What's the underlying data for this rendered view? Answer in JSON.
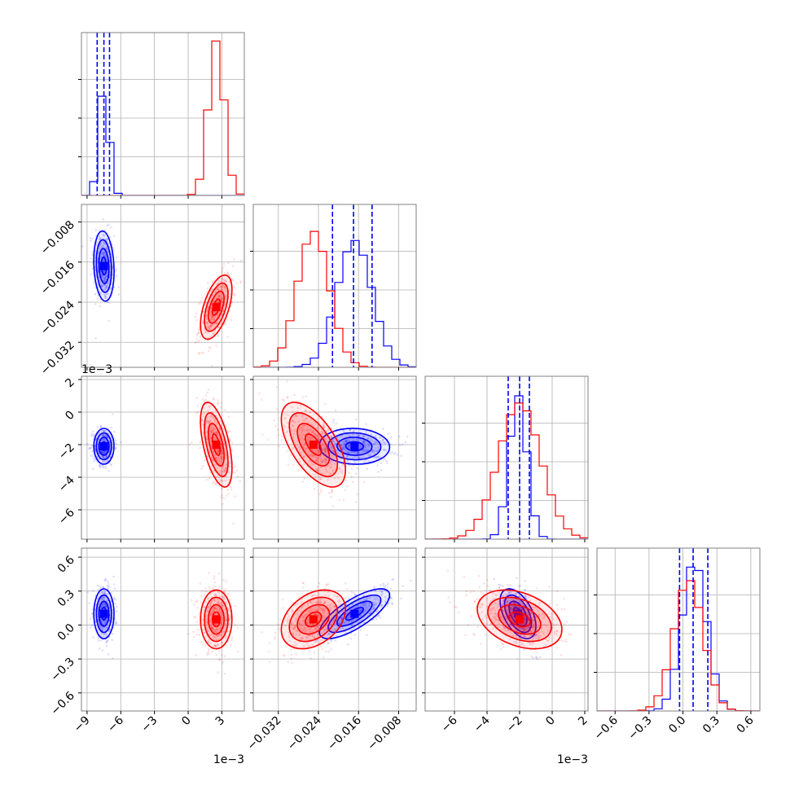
{
  "chart_data": {
    "type": "corner",
    "grid": true,
    "colors": {
      "blue": "#0000ff",
      "red": "#ff0000",
      "frame": "#808080",
      "grid": "#b0b0b0"
    },
    "parameters": [
      {
        "range": [
          -0.0095,
          0.005
        ],
        "ticks": [
          -0.009,
          -0.006,
          -0.003,
          0.0,
          0.003
        ],
        "tick_labels": [
          "−9",
          "−6",
          "−3",
          "0",
          "3"
        ],
        "offset_label": "1e−3"
      },
      {
        "range": [
          -0.037,
          -0.0045
        ],
        "ticks": [
          -0.032,
          -0.024,
          -0.016,
          -0.008
        ],
        "tick_labels": [
          "−0.032",
          "−0.024",
          "−0.016",
          "−0.008"
        ],
        "offset_label": ""
      },
      {
        "range": [
          -0.0078,
          0.0022
        ],
        "ticks": [
          -0.006,
          -0.004,
          -0.002,
          0.0,
          0.002
        ],
        "tick_labels": [
          "−6",
          "−4",
          "−2",
          "0",
          "2"
        ],
        "offset_label": "1e−3"
      },
      {
        "range": [
          -0.76,
          0.68
        ],
        "ticks": [
          -0.6,
          -0.3,
          0.0,
          0.3,
          0.6
        ],
        "tick_labels": [
          "−0.6",
          "−0.3",
          "0.0",
          "0.3",
          "0.6"
        ],
        "offset_label": ""
      }
    ],
    "series": [
      {
        "color": "blue",
        "mean": [
          -0.0075,
          -0.0168,
          -0.0021,
          0.1
        ],
        "std": [
          0.00045,
          0.0035,
          0.00055,
          0.11
        ],
        "corr": {
          "0_1": -0.15,
          "0_2": 0.0,
          "0_3": 0.0,
          "1_2": -0.05,
          "1_3": 0.75,
          "2_3": -0.5
        }
      },
      {
        "color": "red",
        "mean": [
          0.0025,
          -0.025,
          -0.002,
          0.05
        ],
        "std": [
          0.0007,
          0.0032,
          0.0013,
          0.13
        ],
        "corr": {
          "0_1": 0.55,
          "0_2": -0.55,
          "0_3": 0.0,
          "1_2": -0.6,
          "1_3": 0.35,
          "2_3": -0.35
        }
      }
    ],
    "quantile_lines": [
      [
        -0.0081,
        -0.0075,
        -0.007
      ],
      [
        -0.0212,
        -0.017,
        -0.0133
      ],
      [
        -0.0027,
        -0.002,
        -0.0014
      ],
      [
        -0.03,
        0.09,
        0.22
      ]
    ],
    "hist_max": [
      {
        "blue": 0.7,
        "red": 1.0
      },
      {
        "blue": 0.82,
        "red": 0.88
      },
      {
        "blue": 0.93,
        "red": 0.88
      },
      {
        "blue": 0.97,
        "red": 0.85
      }
    ]
  }
}
